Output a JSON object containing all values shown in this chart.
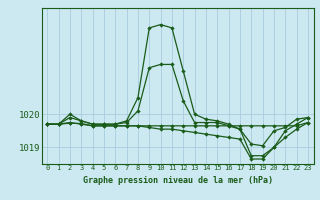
{
  "bg_color": "#cce8f0",
  "grid_color": "#aaccdd",
  "line_color": "#1a5c1a",
  "title": "Graphe pression niveau de la mer (hPa)",
  "yticks": [
    1019,
    1020
  ],
  "ylim": [
    1018.5,
    1023.2
  ],
  "xlim": [
    -0.5,
    23.5
  ],
  "series": [
    [
      1019.7,
      1019.7,
      1019.9,
      1019.8,
      1019.7,
      1019.7,
      1019.7,
      1019.8,
      1020.5,
      1022.6,
      1022.7,
      1022.6,
      1021.3,
      1020.0,
      1019.85,
      1019.8,
      1019.7,
      1019.55,
      1019.1,
      1019.05,
      1019.5,
      1019.6,
      1019.85,
      1019.9
    ],
    [
      1019.7,
      1019.7,
      1020.0,
      1019.8,
      1019.7,
      1019.7,
      1019.7,
      1019.75,
      1020.1,
      1021.4,
      1021.5,
      1021.5,
      1020.4,
      1019.75,
      1019.75,
      1019.75,
      1019.65,
      1019.55,
      1018.75,
      1018.75,
      1019.0,
      1019.5,
      1019.7,
      1019.9
    ],
    [
      1019.7,
      1019.7,
      1019.75,
      1019.7,
      1019.65,
      1019.65,
      1019.65,
      1019.65,
      1019.65,
      1019.6,
      1019.55,
      1019.55,
      1019.5,
      1019.45,
      1019.4,
      1019.35,
      1019.3,
      1019.25,
      1018.65,
      1018.65,
      1019.0,
      1019.3,
      1019.55,
      1019.75
    ],
    [
      1019.7,
      1019.7,
      1019.73,
      1019.72,
      1019.65,
      1019.65,
      1019.65,
      1019.65,
      1019.65,
      1019.65,
      1019.65,
      1019.65,
      1019.65,
      1019.65,
      1019.65,
      1019.65,
      1019.65,
      1019.65,
      1019.65,
      1019.65,
      1019.65,
      1019.65,
      1019.65,
      1019.75
    ]
  ],
  "xlabel_ticks": [
    0,
    1,
    2,
    3,
    4,
    5,
    6,
    7,
    8,
    9,
    10,
    11,
    12,
    13,
    14,
    15,
    16,
    17,
    18,
    19,
    20,
    21,
    22,
    23
  ]
}
